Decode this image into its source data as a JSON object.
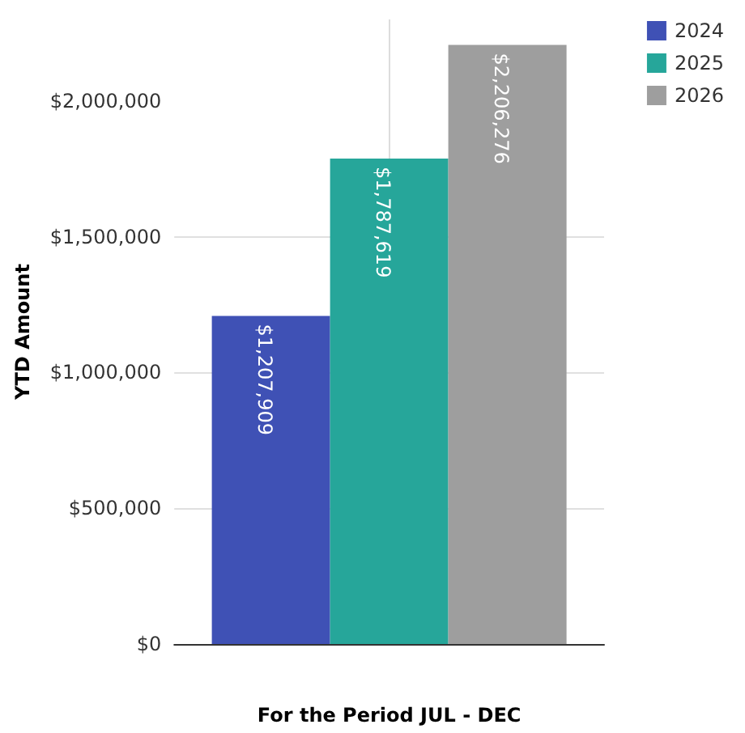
{
  "chart_data": {
    "type": "bar",
    "xlabel": "For the Period JUL - DEC",
    "ylabel": "YTD Amount",
    "categories": [
      null
    ],
    "series": [
      {
        "name": "2024",
        "color": "#3f51b5",
        "values": [
          1207909
        ],
        "value_labels": [
          "$1,207,909"
        ]
      },
      {
        "name": "2025",
        "color": "#26a69a",
        "values": [
          1787619
        ],
        "value_labels": [
          "$1,787,619"
        ]
      },
      {
        "name": "2026",
        "color": "#9e9e9e",
        "values": [
          2206276
        ],
        "value_labels": [
          "$2,206,276"
        ]
      }
    ],
    "ylim": [
      0,
      2300000
    ],
    "yticks": [
      {
        "value": 0,
        "label": "$0"
      },
      {
        "value": 500000,
        "label": "$500,000"
      },
      {
        "value": 1000000,
        "label": "$1,000,000"
      },
      {
        "value": 1500000,
        "label": "$1,500,000"
      },
      {
        "value": 2000000,
        "label": "$2,000,000"
      }
    ],
    "grid": true,
    "legend": "top right"
  }
}
